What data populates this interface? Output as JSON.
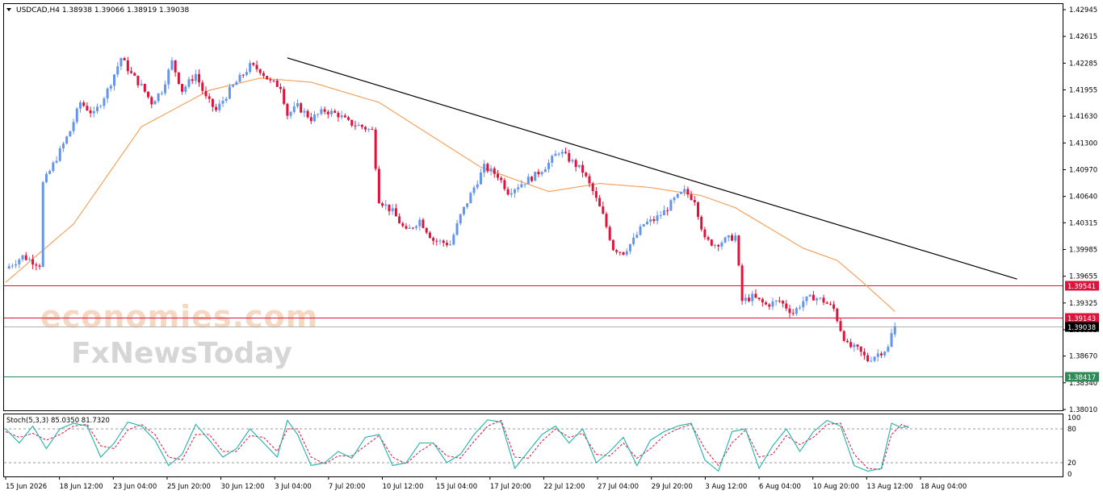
{
  "header": {
    "title": "USDCAD,H4  1.38938 1.39066 1.38919 1.39038",
    "dropdown_icon": "triangle-down-icon"
  },
  "indicator": {
    "label": "Stoch(5,3,3) 85.0350 81.7320"
  },
  "watermark": {
    "brand1": "economies.com",
    "brand2": "FxNewsToday"
  },
  "colors": {
    "bull": "#6495ED",
    "bear": "#DC143C",
    "ma": "#F4A460",
    "resistance": "#DC143C",
    "support": "#2E8B57",
    "current": "#000000",
    "trendline": "#000000",
    "stoch_main": "#20B2AA",
    "stoch_signal": "#DC143C"
  },
  "chart_data": [
    {
      "type": "candlestick",
      "symbol": "USDCAD",
      "timeframe": "H4",
      "ohlc_latest": {
        "open": 1.38938,
        "high": 1.39066,
        "low": 1.38919,
        "close": 1.39038
      },
      "ylim": [
        1.3801,
        1.42945
      ],
      "y_ticks": [
        "1.42945",
        "1.42615",
        "1.42285",
        "1.41955",
        "1.41630",
        "1.41300",
        "1.40970",
        "1.40640",
        "1.40315",
        "1.39985",
        "1.39655",
        "1.39325",
        "1.38995",
        "1.38670",
        "1.38340",
        "1.38010"
      ],
      "x_ticks": [
        "15 Jun 2026",
        "18 Jun 12:00",
        "23 Jun 04:00",
        "25 Jun 20:00",
        "30 Jun 12:00",
        "3 Jul 04:00",
        "7 Jul 20:00",
        "10 Jul 12:00",
        "15 Jul 04:00",
        "17 Jul 20:00",
        "22 Jul 12:00",
        "27 Jul 04:00",
        "29 Jul 20:00",
        "3 Aug 12:00",
        "6 Aug 04:00",
        "10 Aug 20:00",
        "13 Aug 12:00",
        "18 Aug 04:00"
      ],
      "close_path": [
        [
          0,
          1.3975
        ],
        [
          5,
          1.399
        ],
        [
          10,
          1.398
        ],
        [
          11,
          1.408
        ],
        [
          13,
          1.4095
        ],
        [
          16,
          1.412
        ],
        [
          19,
          1.4145
        ],
        [
          22,
          1.418
        ],
        [
          26,
          1.4165
        ],
        [
          30,
          1.4195
        ],
        [
          34,
          1.4235
        ],
        [
          37,
          1.4215
        ],
        [
          40,
          1.42
        ],
        [
          43,
          1.418
        ],
        [
          46,
          1.4195
        ],
        [
          49,
          1.423
        ],
        [
          52,
          1.4195
        ],
        [
          56,
          1.4215
        ],
        [
          59,
          1.4185
        ],
        [
          62,
          1.417
        ],
        [
          66,
          1.4195
        ],
        [
          69,
          1.421
        ],
        [
          72,
          1.4225
        ],
        [
          75,
          1.422
        ],
        [
          78,
          1.4205
        ],
        [
          81,
          1.42
        ],
        [
          83,
          1.4165
        ],
        [
          86,
          1.4175
        ],
        [
          90,
          1.416
        ],
        [
          94,
          1.417
        ],
        [
          98,
          1.4165
        ],
        [
          101,
          1.4155
        ],
        [
          105,
          1.415
        ],
        [
          108,
          1.4145
        ],
        [
          110,
          1.406
        ],
        [
          114,
          1.4045
        ],
        [
          118,
          1.402
        ],
        [
          122,
          1.4035
        ],
        [
          126,
          1.401
        ],
        [
          131,
          1.4005
        ],
        [
          134,
          1.404
        ],
        [
          138,
          1.4075
        ],
        [
          141,
          1.41
        ],
        [
          145,
          1.409
        ],
        [
          148,
          1.407
        ],
        [
          152,
          1.408
        ],
        [
          156,
          1.409
        ],
        [
          160,
          1.4105
        ],
        [
          163,
          1.412
        ],
        [
          166,
          1.411
        ],
        [
          170,
          1.4095
        ],
        [
          173,
          1.407
        ],
        [
          176,
          1.404
        ],
        [
          179,
          1.4
        ],
        [
          182,
          1.3995
        ],
        [
          185,
          1.401
        ],
        [
          188,
          1.403
        ],
        [
          191,
          1.4035
        ],
        [
          194,
          1.4045
        ],
        [
          197,
          1.406
        ],
        [
          200,
          1.407
        ],
        [
          203,
          1.406
        ],
        [
          206,
          1.401
        ],
        [
          209,
          1.4005
        ],
        [
          212,
          1.401
        ],
        [
          215,
          1.4015
        ],
        [
          217,
          1.3935
        ],
        [
          220,
          1.394
        ],
        [
          224,
          1.393
        ],
        [
          228,
          1.3935
        ],
        [
          232,
          1.392
        ],
        [
          235,
          1.3935
        ],
        [
          238,
          1.394
        ],
        [
          241,
          1.3935
        ],
        [
          244,
          1.3925
        ],
        [
          246,
          1.39
        ],
        [
          248,
          1.388
        ],
        [
          251,
          1.3875
        ],
        [
          254,
          1.3862
        ],
        [
          257,
          1.387
        ],
        [
          260,
          1.3877
        ],
        [
          261,
          1.3894
        ],
        [
          262,
          1.39038
        ]
      ],
      "moving_average": [
        [
          0,
          1.3958
        ],
        [
          20,
          1.403
        ],
        [
          40,
          1.415
        ],
        [
          60,
          1.4195
        ],
        [
          75,
          1.421
        ],
        [
          90,
          1.4205
        ],
        [
          110,
          1.418
        ],
        [
          125,
          1.414
        ],
        [
          140,
          1.41
        ],
        [
          160,
          1.407
        ],
        [
          175,
          1.408
        ],
        [
          190,
          1.4075
        ],
        [
          205,
          1.4065
        ],
        [
          215,
          1.405
        ],
        [
          225,
          1.4025
        ],
        [
          235,
          1.4
        ],
        [
          245,
          1.3985
        ],
        [
          252,
          1.396
        ],
        [
          262,
          1.3922
        ]
      ],
      "trendline": {
        "from": [
          83,
          1.4235
        ],
        "to": [
          298,
          1.3962
        ]
      },
      "horizontal_lines": [
        {
          "label": "1.39541",
          "value": 1.39541,
          "role": "resistance"
        },
        {
          "label": "1.39143",
          "value": 1.39143,
          "role": "resistance"
        },
        {
          "label": "1.39038",
          "value": 1.39038,
          "role": "current"
        },
        {
          "label": "1.38417",
          "value": 1.38417,
          "role": "support"
        }
      ]
    },
    {
      "type": "line",
      "name": "Stoch(5,3,3)",
      "values_latest": {
        "main": 85.035,
        "signal": 81.732
      },
      "ylim": [
        0,
        100
      ],
      "y_ticks": [
        "100",
        "80",
        "20",
        "0"
      ],
      "levels": [
        80,
        20
      ],
      "main": [
        [
          0,
          80
        ],
        [
          4,
          55
        ],
        [
          8,
          85
        ],
        [
          12,
          45
        ],
        [
          16,
          80
        ],
        [
          20,
          90
        ],
        [
          24,
          85
        ],
        [
          28,
          30
        ],
        [
          32,
          55
        ],
        [
          36,
          92
        ],
        [
          40,
          85
        ],
        [
          44,
          60
        ],
        [
          48,
          15
        ],
        [
          52,
          35
        ],
        [
          56,
          88
        ],
        [
          60,
          60
        ],
        [
          64,
          30
        ],
        [
          68,
          45
        ],
        [
          72,
          80
        ],
        [
          76,
          55
        ],
        [
          80,
          30
        ],
        [
          83,
          95
        ],
        [
          86,
          70
        ],
        [
          90,
          15
        ],
        [
          94,
          20
        ],
        [
          98,
          40
        ],
        [
          102,
          28
        ],
        [
          106,
          65
        ],
        [
          110,
          70
        ],
        [
          114,
          15
        ],
        [
          118,
          20
        ],
        [
          122,
          55
        ],
        [
          126,
          55
        ],
        [
          130,
          20
        ],
        [
          134,
          35
        ],
        [
          138,
          70
        ],
        [
          142,
          96
        ],
        [
          146,
          92
        ],
        [
          150,
          10
        ],
        [
          154,
          40
        ],
        [
          158,
          70
        ],
        [
          162,
          85
        ],
        [
          166,
          55
        ],
        [
          170,
          80
        ],
        [
          174,
          20
        ],
        [
          178,
          40
        ],
        [
          182,
          65
        ],
        [
          186,
          15
        ],
        [
          190,
          60
        ],
        [
          194,
          75
        ],
        [
          198,
          85
        ],
        [
          202,
          90
        ],
        [
          206,
          25
        ],
        [
          210,
          5
        ],
        [
          214,
          75
        ],
        [
          218,
          80
        ],
        [
          222,
          10
        ],
        [
          226,
          50
        ],
        [
          230,
          80
        ],
        [
          234,
          40
        ],
        [
          238,
          75
        ],
        [
          242,
          95
        ],
        [
          246,
          85
        ],
        [
          250,
          15
        ],
        [
          254,
          5
        ],
        [
          258,
          10
        ],
        [
          261,
          90
        ],
        [
          264,
          82
        ],
        [
          266,
          85
        ]
      ],
      "signal": [
        [
          0,
          75
        ],
        [
          4,
          65
        ],
        [
          8,
          72
        ],
        [
          12,
          60
        ],
        [
          16,
          70
        ],
        [
          20,
          85
        ],
        [
          24,
          88
        ],
        [
          28,
          50
        ],
        [
          32,
          45
        ],
        [
          36,
          78
        ],
        [
          40,
          88
        ],
        [
          44,
          70
        ],
        [
          48,
          30
        ],
        [
          52,
          25
        ],
        [
          56,
          70
        ],
        [
          60,
          70
        ],
        [
          64,
          40
        ],
        [
          68,
          40
        ],
        [
          72,
          68
        ],
        [
          76,
          65
        ],
        [
          80,
          40
        ],
        [
          83,
          80
        ],
        [
          86,
          80
        ],
        [
          90,
          30
        ],
        [
          94,
          18
        ],
        [
          98,
          32
        ],
        [
          102,
          32
        ],
        [
          106,
          50
        ],
        [
          110,
          68
        ],
        [
          114,
          30
        ],
        [
          118,
          18
        ],
        [
          122,
          40
        ],
        [
          126,
          55
        ],
        [
          130,
          32
        ],
        [
          134,
          28
        ],
        [
          138,
          58
        ],
        [
          142,
          85
        ],
        [
          146,
          95
        ],
        [
          150,
          30
        ],
        [
          154,
          28
        ],
        [
          158,
          58
        ],
        [
          162,
          80
        ],
        [
          166,
          65
        ],
        [
          170,
          72
        ],
        [
          174,
          35
        ],
        [
          178,
          32
        ],
        [
          182,
          55
        ],
        [
          186,
          28
        ],
        [
          190,
          45
        ],
        [
          194,
          68
        ],
        [
          198,
          80
        ],
        [
          202,
          88
        ],
        [
          206,
          45
        ],
        [
          210,
          15
        ],
        [
          214,
          55
        ],
        [
          218,
          78
        ],
        [
          222,
          30
        ],
        [
          226,
          35
        ],
        [
          230,
          68
        ],
        [
          234,
          52
        ],
        [
          238,
          65
        ],
        [
          242,
          88
        ],
        [
          246,
          90
        ],
        [
          250,
          35
        ],
        [
          254,
          10
        ],
        [
          258,
          8
        ],
        [
          261,
          70
        ],
        [
          264,
          88
        ],
        [
          266,
          82
        ]
      ]
    }
  ]
}
